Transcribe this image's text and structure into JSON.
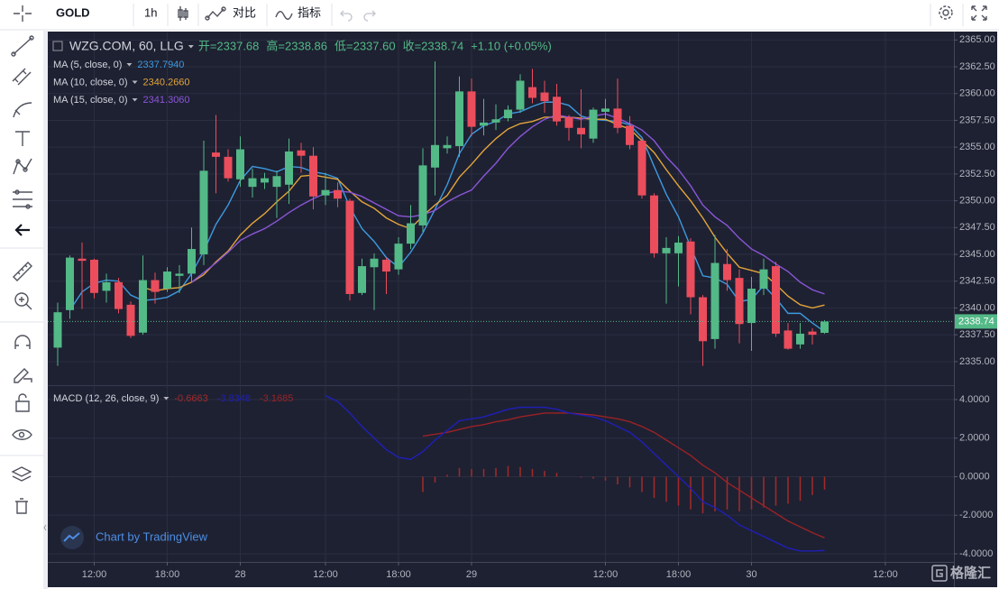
{
  "toolbar": {
    "symbol": "GOLD",
    "interval": "1h",
    "compare": "对比",
    "indicators": "指标"
  },
  "watermark": "Chart by TradingView",
  "logo": "格隆汇",
  "chart_data": [
    {
      "type": "candlestick",
      "title": "WZG.COM, 60, LLG",
      "header_items": [
        "开=2337.68",
        "高=2338.86",
        "低=2337.60",
        "收=2338.74",
        "+1.10 (+0.05%)"
      ],
      "categories": [
        null,
        null,
        null,
        "12:00",
        null,
        null,
        null,
        null,
        null,
        "18:00",
        null,
        null,
        null,
        null,
        null,
        "28",
        null,
        null,
        null,
        null,
        null,
        null,
        "12:00",
        null,
        null,
        null,
        null,
        null,
        "18:00",
        null,
        null,
        null,
        null,
        null,
        "29",
        null,
        null,
        null,
        null,
        null,
        null,
        null,
        null,
        null,
        null,
        "12:00",
        null,
        null,
        null,
        null,
        null,
        "18:00",
        null,
        null,
        null,
        null,
        null,
        "30",
        null,
        null,
        null,
        null,
        null,
        null,
        null,
        null,
        null,
        null,
        "12:00"
      ],
      "open": [
        2336.3,
        2339.8,
        2344.6,
        2344.5,
        2341.6,
        2342.4,
        2340.3,
        2337.7,
        2342.6,
        2341.8,
        2343.0,
        2343.2,
        2345.0,
        2354.5,
        2354.1,
        2352.0,
        2351.3,
        2351.7,
        2351.3,
        2351.5,
        2354.7,
        2354.2,
        2350.5,
        2351.0,
        2350.0,
        2341.4,
        2343.8,
        2344.5,
        2343.6,
        2346.0,
        2347.7,
        2353.1,
        2354.9,
        2355.1,
        2360.2,
        2357.0,
        2357.3,
        2357.7,
        2358.5,
        2360.6,
        2360.1,
        2359.7,
        2357.8,
        2356.8,
        2355.8,
        2358.3,
        2358.6,
        2357.0,
        2355.6,
        2350.5,
        2345.1,
        2345.1,
        2346.2,
        2341.0,
        2337.1,
        2344.1,
        2342.8,
        2338.6,
        2341.8,
        2343.9,
        2337.9,
        2336.6,
        2337.8,
        2337.68,
        null,
        null,
        null,
        null,
        null
      ],
      "high": [
        2340.5,
        2344.9,
        2346.1,
        2344.6,
        2343.2,
        2342.8,
        2340.6,
        2344.9,
        2343.3,
        2343.8,
        2344.0,
        2347.5,
        2355.6,
        2358.0,
        2354.8,
        2356.0,
        2353.0,
        2352.6,
        2352.8,
        2355.8,
        2355.4,
        2355.0,
        2352.6,
        2351.7,
        2350.2,
        2344.6,
        2345.1,
        2344.7,
        2346.6,
        2349.6,
        2354.9,
        2363.0,
        2356.0,
        2361.6,
        2361.4,
        2359.5,
        2359.0,
        2358.9,
        2361.8,
        2362.3,
        2361.2,
        2360.9,
        2358.0,
        2360.4,
        2358.7,
        2359.5,
        2361.4,
        2357.9,
        2355.8,
        2350.7,
        2346.6,
        2346.7,
        2346.5,
        2341.2,
        2346.8,
        2345.5,
        2343.6,
        2342.9,
        2344.6,
        2344.3,
        2338.6,
        2338.6,
        2338.1,
        2338.86,
        null,
        null,
        null,
        null,
        null
      ],
      "low": [
        2334.6,
        2339.0,
        2339.9,
        2340.9,
        2340.5,
        2339.5,
        2337.2,
        2337.5,
        2340.4,
        2341.5,
        2341.4,
        2342.4,
        2344.0,
        2350.7,
        2351.8,
        2351.3,
        2350.3,
        2351.1,
        2348.4,
        2349.7,
        2352.6,
        2349.2,
        2349.6,
        2349.4,
        2340.7,
        2341.2,
        2339.8,
        2341.3,
        2343.1,
        2345.5,
        2347.1,
        2350.5,
        2354.4,
        2354.1,
        2356.0,
        2356.1,
        2356.6,
        2357.4,
        2358.2,
        2359.1,
        2358.2,
        2357.0,
        2355.6,
        2354.9,
        2355.4,
        2357.5,
        2356.3,
        2354.8,
        2350.2,
        2344.7,
        2340.4,
        2342.0,
        2339.4,
        2334.6,
        2336.2,
        2341.6,
        2336.7,
        2336.0,
        2341.2,
        2337.3,
        2336.1,
        2336.2,
        2336.6,
        2337.6,
        null,
        null,
        null,
        null,
        null
      ],
      "close": [
        2339.6,
        2344.7,
        2344.4,
        2341.4,
        2342.4,
        2339.9,
        2337.4,
        2342.6,
        2341.5,
        2343.4,
        2343.2,
        2345.5,
        2352.8,
        2354.1,
        2352.1,
        2354.8,
        2352.1,
        2352.1,
        2352.3,
        2354.6,
        2354.2,
        2350.4,
        2351.0,
        2350.2,
        2341.3,
        2343.9,
        2344.6,
        2343.4,
        2346.0,
        2347.9,
        2353.3,
        2355.2,
        2355.2,
        2360.2,
        2356.9,
        2357.3,
        2357.6,
        2358.5,
        2361.2,
        2359.6,
        2359.3,
        2357.4,
        2356.8,
        2356.2,
        2358.5,
        2358.6,
        2356.8,
        2355.2,
        2350.5,
        2345.1,
        2345.6,
        2346.1,
        2341.0,
        2336.9,
        2344.2,
        2342.6,
        2338.5,
        2341.8,
        2343.6,
        2337.6,
        2336.2,
        2337.6,
        2337.5,
        2338.74,
        null,
        null,
        null,
        null,
        null
      ],
      "up_color": "#53b987",
      "down_color": "#eb4d5c",
      "series": [
        {
          "name": "MA (5, close, 0)",
          "color": "#3d9ae0",
          "legend_value": "2337.7940",
          "values": [
            null,
            2339.8,
            2341.5,
            2342.3,
            2342.6,
            2342.5,
            2341.2,
            2340.7,
            2340.8,
            2341.0,
            2341.6,
            2343.2,
            2345.3,
            2347.8,
            2349.6,
            2351.9,
            2353.2,
            2353.0,
            2352.7,
            2353.2,
            2353.1,
            2352.7,
            2352.5,
            2352.1,
            2349.4,
            2347.4,
            2346.2,
            2344.7,
            2343.8,
            2345.2,
            2347.0,
            2349.2,
            2351.5,
            2354.4,
            2356.2,
            2357.0,
            2357.4,
            2358.1,
            2358.3,
            2358.8,
            2359.2,
            2359.2,
            2358.9,
            2357.9,
            2357.6,
            2357.5,
            2357.4,
            2357.1,
            2355.9,
            2353.2,
            2350.6,
            2348.5,
            2345.7,
            2343.0,
            2342.8,
            2342.2,
            2340.6,
            2340.8,
            2342.1,
            2340.9,
            2339.5,
            2339.5,
            2338.6,
            2337.79,
            null,
            null,
            null,
            null,
            null
          ]
        },
        {
          "name": "MA (10, close, 0)",
          "color": "#e3a53a",
          "legend_value": "2340.2660",
          "values": [
            null,
            null,
            null,
            null,
            null,
            null,
            null,
            2341.9,
            2341.6,
            2341.8,
            2341.9,
            2342.4,
            2343.1,
            2344.3,
            2345.3,
            2346.8,
            2347.9,
            2348.8,
            2349.9,
            2350.9,
            2352.3,
            2352.4,
            2352.2,
            2352.0,
            2350.9,
            2349.9,
            2349.3,
            2348.4,
            2347.8,
            2347.4,
            2348.6,
            2349.6,
            2350.5,
            2352.2,
            2353.4,
            2354.7,
            2355.8,
            2356.7,
            2357.2,
            2357.4,
            2357.8,
            2357.8,
            2357.8,
            2357.7,
            2357.6,
            2357.6,
            2357.1,
            2356.7,
            2355.6,
            2354.5,
            2352.9,
            2351.4,
            2350.0,
            2348.4,
            2346.6,
            2345.1,
            2343.8,
            2343.5,
            2343.2,
            2342.2,
            2341.1,
            2340.3,
            2340.0,
            2340.27,
            null,
            null,
            null,
            null,
            null
          ]
        },
        {
          "name": "MA (15, close, 0)",
          "color": "#8a56d8",
          "legend_value": "2341.3060",
          "values": [
            null,
            null,
            null,
            null,
            null,
            null,
            null,
            null,
            null,
            null,
            null,
            2342.4,
            2343.3,
            2344.2,
            2345.2,
            2346.3,
            2346.9,
            2347.4,
            2348.1,
            2348.9,
            2349.6,
            2350.2,
            2350.7,
            2350.9,
            2350.8,
            2350.4,
            2349.8,
            2349.2,
            2348.6,
            2348.5,
            2348.7,
            2349.1,
            2349.9,
            2350.5,
            2351.0,
            2352.3,
            2353.5,
            2354.9,
            2356.0,
            2356.9,
            2357.6,
            2358.0,
            2357.8,
            2357.6,
            2357.9,
            2358.1,
            2357.7,
            2357.2,
            2356.6,
            2355.6,
            2354.1,
            2352.9,
            2351.4,
            2349.6,
            2348.5,
            2347.7,
            2346.5,
            2345.5,
            2344.9,
            2344.1,
            2343.4,
            2342.4,
            2341.7,
            2341.31,
            null,
            null,
            null,
            null,
            null
          ]
        }
      ],
      "last_price": 2338.74,
      "last_price_color": "#53b987",
      "ylim": [
        2332.8,
        2365.7
      ],
      "yticks": [
        {
          "value": 2335,
          "label": "2335.00"
        },
        {
          "value": 2337.5,
          "label": "2337.50"
        },
        {
          "value": 2340,
          "label": "2340.00"
        },
        {
          "value": 2342.5,
          "label": "2342.50"
        },
        {
          "value": 2345,
          "label": "2345.00"
        },
        {
          "value": 2347.5,
          "label": "2347.50"
        },
        {
          "value": 2350,
          "label": "2350.00"
        },
        {
          "value": 2352.5,
          "label": "2352.50"
        },
        {
          "value": 2355,
          "label": "2355.00"
        },
        {
          "value": 2357.5,
          "label": "2357.50"
        },
        {
          "value": 2360,
          "label": "2360.00"
        },
        {
          "value": 2362.5,
          "label": "2362.50"
        },
        {
          "value": 2365,
          "label": "2365.00"
        }
      ],
      "grid": true
    },
    {
      "type": "macd",
      "title": "MACD (12, 26, close, 9)",
      "histogram": {
        "color": "#a32a2a",
        "legend_value": "-0.6663",
        "values": [
          null,
          null,
          null,
          null,
          null,
          null,
          null,
          null,
          null,
          null,
          null,
          null,
          null,
          null,
          null,
          null,
          null,
          null,
          null,
          null,
          null,
          null,
          null,
          null,
          null,
          null,
          null,
          null,
          null,
          null,
          -0.8,
          -0.3,
          0.1,
          0.45,
          0.4,
          0.4,
          0.45,
          0.55,
          0.5,
          0.4,
          0.3,
          0.2,
          0,
          -0.05,
          -0.1,
          -0.2,
          -0.4,
          -0.55,
          -0.8,
          -1.1,
          -1.3,
          -1.5,
          -1.7,
          -1.9,
          -1.8,
          -1.7,
          -1.8,
          -1.7,
          -1.6,
          -1.5,
          -1.4,
          -1.25,
          -0.95,
          -0.67,
          null,
          null,
          null,
          null,
          null
        ]
      },
      "macd": {
        "color": "#1f1fb8",
        "legend_value": "-3.8348",
        "values": [
          null,
          null,
          null,
          null,
          null,
          null,
          null,
          null,
          null,
          null,
          null,
          null,
          null,
          null,
          null,
          null,
          null,
          null,
          null,
          null,
          null,
          null,
          4.2,
          3.9,
          3.3,
          2.6,
          2.0,
          1.4,
          1.0,
          0.9,
          1.3,
          1.9,
          2.4,
          2.9,
          3.0,
          3.1,
          3.3,
          3.5,
          3.6,
          3.6,
          3.6,
          3.5,
          3.3,
          3.2,
          3.1,
          2.9,
          2.6,
          2.3,
          1.8,
          1.2,
          0.6,
          0.0,
          -0.6,
          -1.3,
          -1.6,
          -2.0,
          -2.5,
          -2.8,
          -3.1,
          -3.4,
          -3.7,
          -3.85,
          -3.85,
          -3.83,
          null,
          null,
          null,
          null,
          null
        ]
      },
      "signal": {
        "color": "#9b2226",
        "legend_value": "-3.1685",
        "values": [
          null,
          null,
          null,
          null,
          null,
          null,
          null,
          null,
          null,
          null,
          null,
          null,
          null,
          null,
          null,
          null,
          null,
          null,
          null,
          null,
          null,
          null,
          null,
          null,
          null,
          null,
          null,
          null,
          null,
          null,
          2.1,
          2.2,
          2.3,
          2.45,
          2.6,
          2.7,
          2.85,
          2.95,
          3.1,
          3.2,
          3.3,
          3.3,
          3.3,
          3.25,
          3.2,
          3.1,
          3.0,
          2.85,
          2.6,
          2.3,
          1.9,
          1.5,
          1.1,
          0.6,
          0.2,
          -0.3,
          -0.7,
          -1.1,
          -1.5,
          -1.9,
          -2.3,
          -2.6,
          -2.9,
          -3.17,
          null,
          null,
          null,
          null,
          null
        ]
      },
      "ylim": [
        -4.42,
        4.7
      ],
      "yticks": [
        {
          "value": -4,
          "label": "-4.0000"
        },
        {
          "value": -2,
          "label": "-2.0000"
        },
        {
          "value": 0,
          "label": "0.0000"
        },
        {
          "value": 2,
          "label": "2.0000"
        },
        {
          "value": 4,
          "label": "4.0000"
        }
      ],
      "grid": true
    }
  ]
}
